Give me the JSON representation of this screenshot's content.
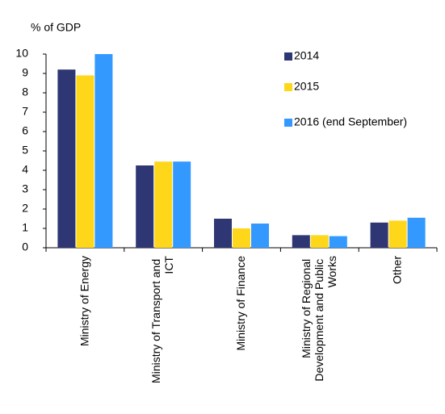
{
  "chart_data": {
    "type": "bar",
    "y_label": "% of GDP",
    "categories": [
      "Ministry of Energy",
      "Ministry of Transport and ICT",
      "Ministry of Finance",
      "Ministry of Regional Development and Public Works",
      "Other"
    ],
    "series": [
      {
        "name": "2014",
        "color": "#2e3673",
        "values": [
          9.2,
          4.25,
          1.5,
          0.65,
          1.3
        ]
      },
      {
        "name": "2015",
        "color": "#ffd71a",
        "values": [
          8.9,
          4.45,
          1.0,
          0.65,
          1.4
        ]
      },
      {
        "name": "2016 (end September)",
        "color": "#3399ff",
        "values": [
          10.0,
          4.45,
          1.25,
          0.6,
          1.55
        ]
      }
    ],
    "ylim": [
      0,
      10
    ],
    "yticks": [
      0,
      1,
      2,
      3,
      4,
      5,
      6,
      7,
      8,
      9,
      10
    ],
    "grid": false,
    "legend": "top-right"
  }
}
